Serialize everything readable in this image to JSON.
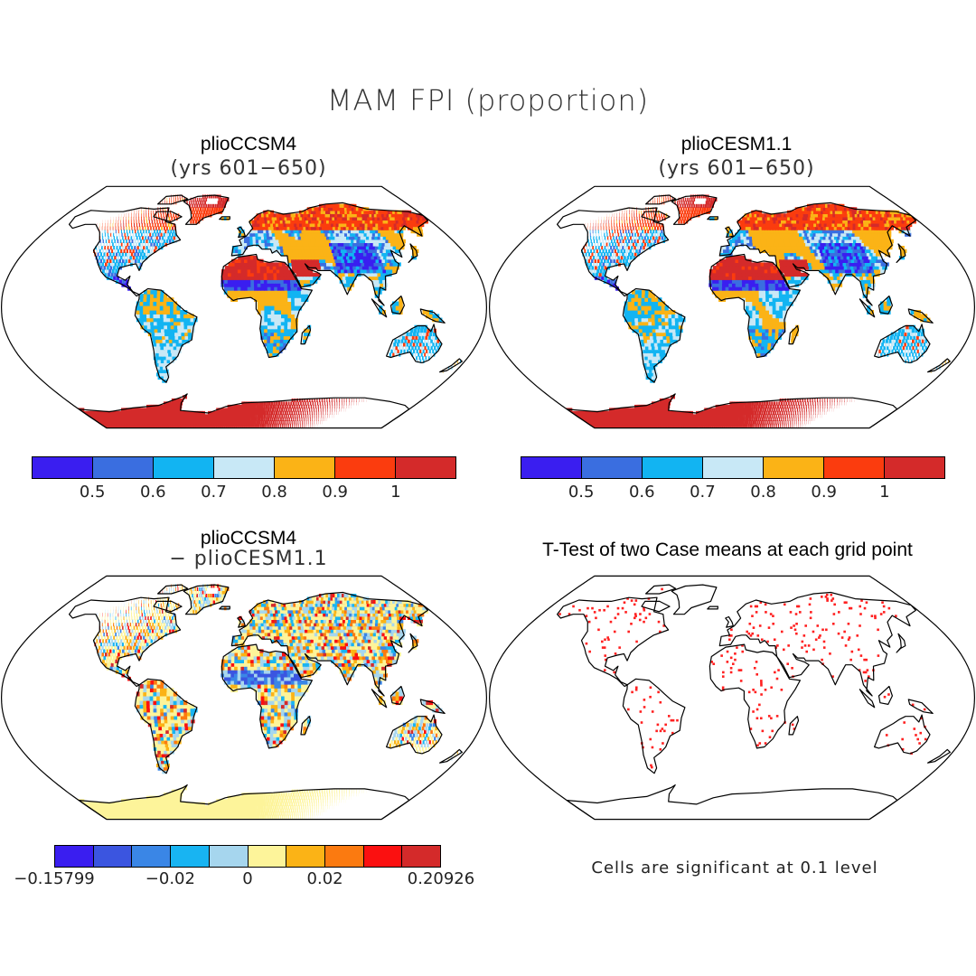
{
  "figure": {
    "title": "MAM FPI (proportion)"
  },
  "panels": [
    {
      "id": "a",
      "title": "plioCCSM4",
      "subtitle": "(yrs 601−650)",
      "kind": "fpi"
    },
    {
      "id": "b",
      "title": "plioCESM1.1",
      "subtitle": "(yrs 601−650)",
      "kind": "fpi"
    },
    {
      "id": "c",
      "title": "plioCCSM4",
      "subtitle": "− plioCESM1.1",
      "kind": "diff"
    },
    {
      "id": "d",
      "title": "T-Test of two Case means at each grid point",
      "subtitle": "",
      "kind": "ttest"
    }
  ],
  "colorbars": {
    "fpi": {
      "colors": [
        "#3a1ef0",
        "#3a6ee0",
        "#12b4f2",
        "#c8e8f6",
        "#fbb316",
        "#fb3c0e",
        "#d42a2a"
      ],
      "ticks": [
        "0.5",
        "0.6",
        "0.7",
        "0.8",
        "0.9",
        "1"
      ]
    },
    "diff": {
      "colors": [
        "#3a1ef0",
        "#3b55e0",
        "#3a86e6",
        "#18b4f2",
        "#a6d6ee",
        "#fdf49a",
        "#fbb316",
        "#fb7a10",
        "#fb1010",
        "#d42a2a"
      ],
      "ticks": [
        "−0.15799",
        "−0.02",
        "0",
        "0.02",
        "0.20926"
      ]
    }
  },
  "significance": {
    "note": "Cells are significant at 0.1 level",
    "color": "#ff2020"
  }
}
